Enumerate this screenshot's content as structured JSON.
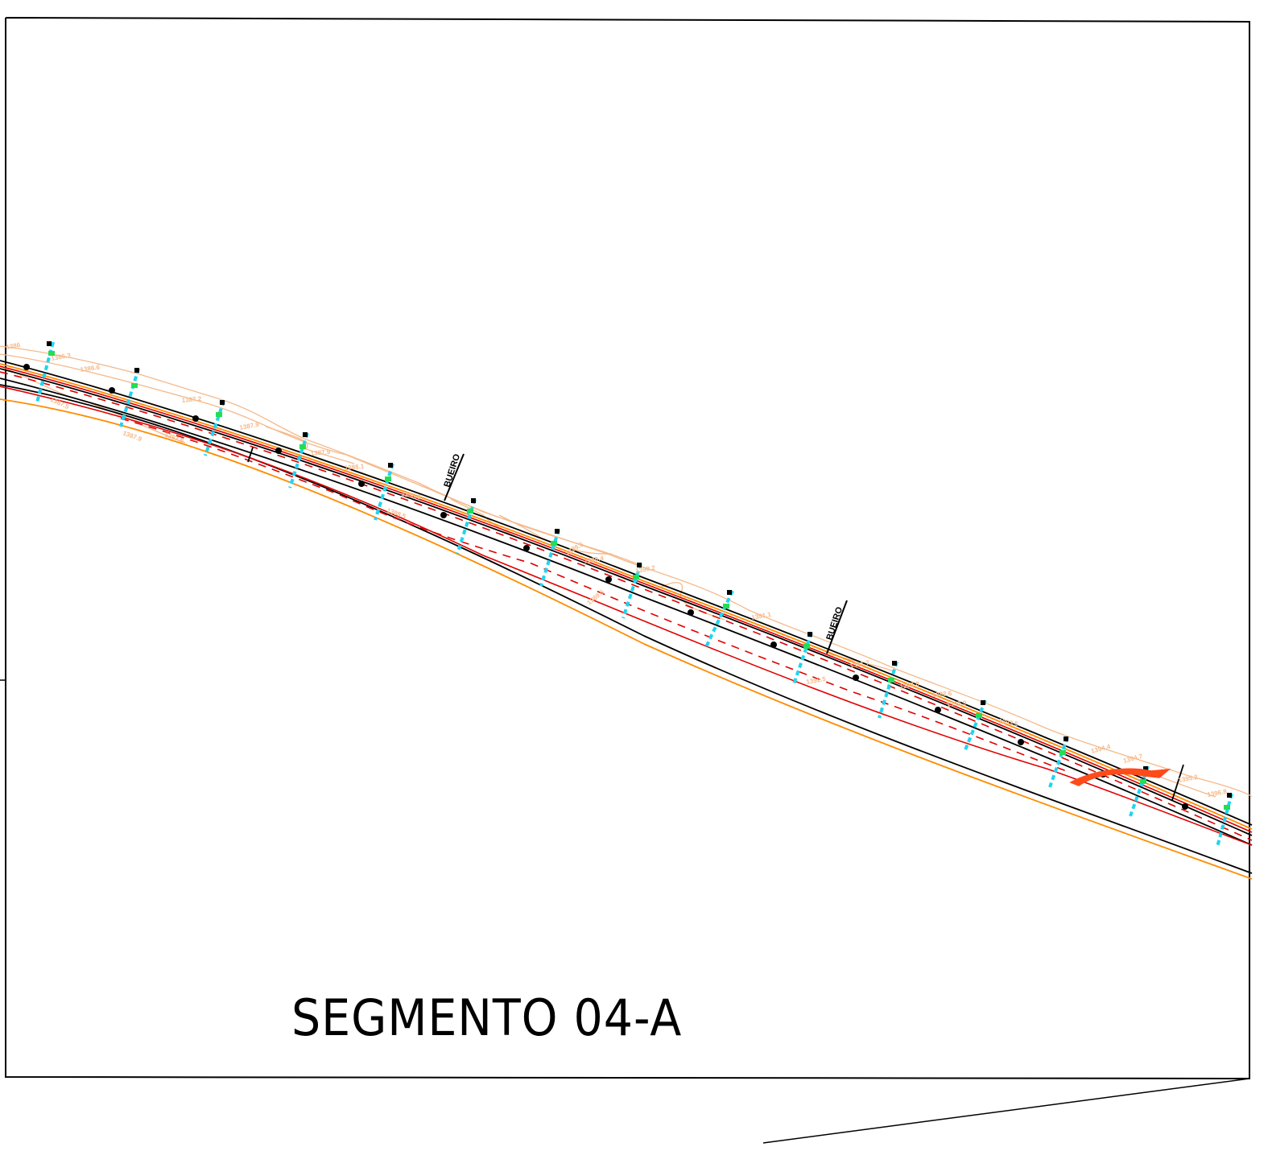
{
  "sheet": {
    "title": "SEGMENTO 04-A"
  },
  "annotations": {
    "culverts": [
      {
        "label": "BUEIRO"
      },
      {
        "label": "BUEIRO"
      }
    ],
    "contour_elevations": [
      "1386",
      "1386.3",
      "1386.6",
      "1387.5",
      "1387.2",
      "1387.9",
      "1387.5",
      "1387.9",
      "1387.9",
      "1388.1",
      "1388.6",
      "1388.5",
      "1389.5",
      "1389.4",
      "1389.5",
      "1390.2",
      "1391.1",
      "1391.7",
      "1392.5",
      "1392.8",
      "1392.6",
      "1392.9",
      "1393.5",
      "1394.4",
      "1394.7",
      "1395.2",
      "1396.8"
    ]
  },
  "colors": {
    "border": "#000000",
    "road_edge": "#000000",
    "axis_red": "#e00000",
    "offset_orange": "#ff8c00",
    "contour_tan": "#f5b98a",
    "marker_cyan": "#1fd4f0",
    "marker_green": "#22dd55",
    "marker_black": "#000000"
  }
}
